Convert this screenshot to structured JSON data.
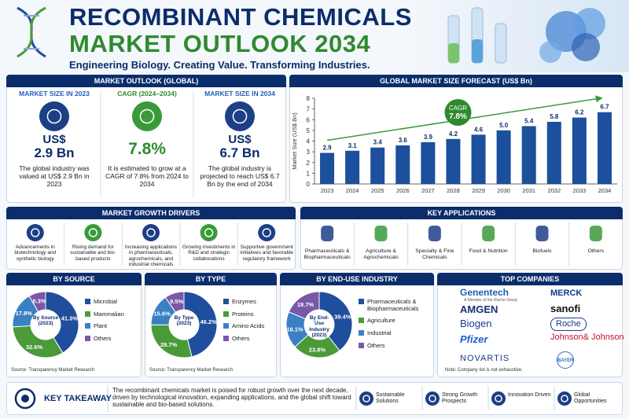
{
  "header": {
    "title_line1": "RECOMBINANT CHEMICALS",
    "title_line2": "MARKET OUTLOOK 2034",
    "tagline": "Engineering Biology. Creating Value. Transforming Industries."
  },
  "outlook": {
    "heading": "MARKET OUTLOOK (GLOBAL)",
    "items": [
      {
        "label": "MARKET SIZE IN 2023",
        "prefix": "US$",
        "value": "2.9 Bn",
        "text": "The global industry was valued at US$ 2.9 Bn in 2023"
      },
      {
        "label": "CAGR (2024–2034)",
        "value": "7.8%",
        "text": "It is estimated to grow at a CAGR of 7.8% from 2024 to 2034"
      },
      {
        "label": "MARKET SIZE IN 2034",
        "prefix": "US$",
        "value": "6.7 Bn",
        "text": "The global industry is projected to reach US$ 6.7 Bn by the end of 2034"
      }
    ]
  },
  "chart_data": [
    {
      "type": "bar",
      "title": "GLOBAL MARKET SIZE FORECAST (US$ Bn)",
      "y_label": "Market Size (US$ Bn)",
      "categories": [
        "2023",
        "2024",
        "2025",
        "2026",
        "2027",
        "2028",
        "2029",
        "2030",
        "2031",
        "2032",
        "2033",
        "2034"
      ],
      "values": [
        2.9,
        3.1,
        3.4,
        3.6,
        3.9,
        4.2,
        4.6,
        5.0,
        5.4,
        5.8,
        6.2,
        6.7
      ],
      "value_labels": [
        "2.9",
        "3.1",
        "3.4",
        "3.6",
        "3.9",
        "4.2",
        "4.6",
        "5.0",
        "5.4",
        "5.8",
        "6.2",
        "6.7"
      ],
      "color": "#1c4f9c",
      "ylim": [
        0,
        8
      ],
      "yticks": [
        0,
        1,
        2,
        3,
        4,
        5,
        6,
        7,
        8
      ],
      "annotation": {
        "label": "CAGR",
        "value": "7.8%"
      }
    },
    {
      "type": "pie",
      "title": "BY SOURCE",
      "center_label": "By Source (2023)",
      "categories": [
        "Microbial",
        "Mammalian",
        "Plant",
        "Others"
      ],
      "values": [
        41.3,
        32.6,
        17.8,
        8.3
      ],
      "value_labels": [
        "41.3%",
        "32.6%",
        "17.8%",
        "8.3%"
      ],
      "colors": [
        "#1f4e9c",
        "#4a9a3a",
        "#3a80c3",
        "#7a58a8"
      ],
      "source": "Source: Transparency Market Research"
    },
    {
      "type": "pie",
      "title": "BY TYPE",
      "center_label": "By Type (2023)",
      "categories": [
        "Enzymes",
        "Proteins",
        "Amino Acids",
        "Others"
      ],
      "values": [
        46.2,
        28.7,
        15.6,
        9.5
      ],
      "value_labels": [
        "46.2%",
        "28.7%",
        "15.6%",
        "9.5%"
      ],
      "colors": [
        "#1f4e9c",
        "#4a9a3a",
        "#3a80c3",
        "#7a58a8"
      ],
      "source": "Source: Transparency Market Research"
    },
    {
      "type": "pie",
      "title": "BY END-USE INDUSTRY",
      "center_label": "By End-Use Industry (2023)",
      "categories": [
        "Pharmaceuticals & Biopharmaceuticals",
        "Agriculture",
        "Industrial",
        "Others"
      ],
      "values": [
        39.4,
        23.8,
        18.1,
        18.7
      ],
      "value_labels": [
        "39.4%",
        "23.8%",
        "18.1%",
        "18.7%"
      ],
      "colors": [
        "#1f4e9c",
        "#4a9a3a",
        "#3a80c3",
        "#7a58a8"
      ]
    }
  ],
  "drivers": {
    "heading": "MARKET GROWTH DRIVERS",
    "items": [
      "Advancements in biotechnology and synthetic biology",
      "Rising demand for sustainable and bio-based products",
      "Increasing applications in pharmaceuticals, agrochemicals, and industrial chemicals",
      "Growing investments in R&D and strategic collaborations",
      "Supportive government initiatives and favorable regulatory framework"
    ]
  },
  "applications": {
    "heading": "KEY APPLICATIONS",
    "items": [
      "Pharmaceuticals & Biopharmaceuticals",
      "Agriculture & Agrochemicals",
      "Specialty & Fine Chemicals",
      "Food & Nutrition",
      "Biofuels",
      "Others"
    ]
  },
  "companies": {
    "heading": "TOP COMPANIES",
    "genentech_note": "A Member of the Roche Group",
    "left": [
      "Genentech",
      "AMGEN",
      "Biogen",
      "Pfizer",
      "NOVARTIS"
    ],
    "right": [
      "MERCK",
      "sanofi",
      "Roche",
      "Johnson& Johnson",
      "BAYER"
    ],
    "note": "Note: Company list is not exhaustive."
  },
  "takeaway": {
    "heading": "KEY TAKEAWAY",
    "text": "The recombinant chemicals market is poised for robust growth over the next decade, driven by technological innovation, expanding applications, and the global shift toward sustainable and bio-based solutions.",
    "badges": [
      "Sustainable Solutions",
      "Strong Growth Prospects",
      "Innovation Driven",
      "Global Opportunities"
    ]
  }
}
